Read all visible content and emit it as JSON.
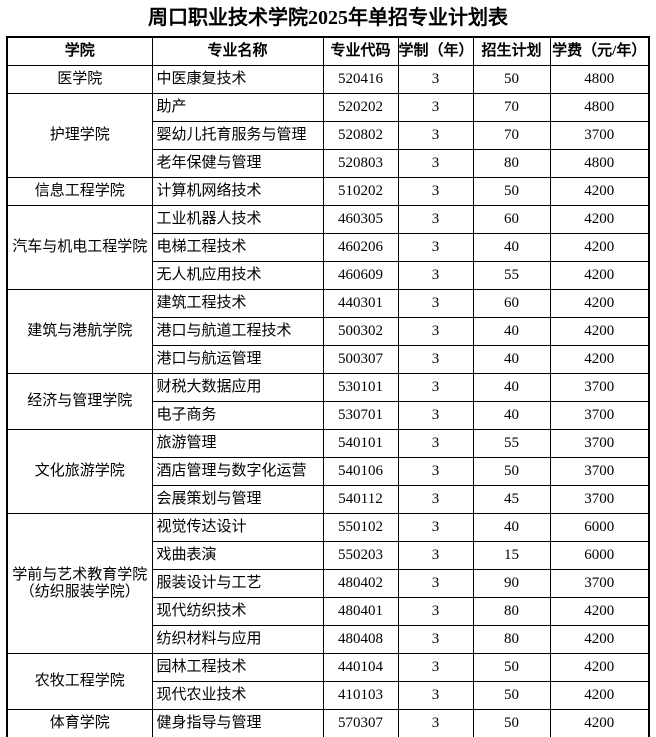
{
  "title": "周口职业技术学院2025年单招专业计划表",
  "table": {
    "headers": [
      "学院",
      "专业名称",
      "专业代码",
      "学制（年）",
      "招生计划",
      "学费（元/年）"
    ],
    "groups": [
      {
        "college": "医学院",
        "rows": [
          [
            "中医康复技术",
            "520416",
            "3",
            "50",
            "4800"
          ]
        ]
      },
      {
        "college": "护理学院",
        "rows": [
          [
            "助产",
            "520202",
            "3",
            "70",
            "4800"
          ],
          [
            "婴幼儿托育服务与管理",
            "520802",
            "3",
            "70",
            "3700"
          ],
          [
            "老年保健与管理",
            "520803",
            "3",
            "80",
            "4800"
          ]
        ]
      },
      {
        "college": "信息工程学院",
        "rows": [
          [
            "计算机网络技术",
            "510202",
            "3",
            "50",
            "4200"
          ]
        ]
      },
      {
        "college": "汽车与机电工程学院",
        "rows": [
          [
            "工业机器人技术",
            "460305",
            "3",
            "60",
            "4200"
          ],
          [
            "电梯工程技术",
            "460206",
            "3",
            "40",
            "4200"
          ],
          [
            "无人机应用技术",
            "460609",
            "3",
            "55",
            "4200"
          ]
        ]
      },
      {
        "college": "建筑与港航学院",
        "rows": [
          [
            "建筑工程技术",
            "440301",
            "3",
            "60",
            "4200"
          ],
          [
            "港口与航道工程技术",
            "500302",
            "3",
            "40",
            "4200"
          ],
          [
            "港口与航运管理",
            "500307",
            "3",
            "40",
            "4200"
          ]
        ]
      },
      {
        "college": "经济与管理学院",
        "rows": [
          [
            "财税大数据应用",
            "530101",
            "3",
            "40",
            "3700"
          ],
          [
            "电子商务",
            "530701",
            "3",
            "40",
            "3700"
          ]
        ]
      },
      {
        "college": "文化旅游学院",
        "rows": [
          [
            "旅游管理",
            "540101",
            "3",
            "55",
            "3700"
          ],
          [
            "酒店管理与数字化运营",
            "540106",
            "3",
            "50",
            "3700"
          ],
          [
            "会展策划与管理",
            "540112",
            "3",
            "45",
            "3700"
          ]
        ]
      },
      {
        "college": "学前与艺术教育学院（纺织服装学院）",
        "rows": [
          [
            "视觉传达设计",
            "550102",
            "3",
            "40",
            "6000"
          ],
          [
            "戏曲表演",
            "550203",
            "3",
            "15",
            "6000"
          ],
          [
            "服装设计与工艺",
            "480402",
            "3",
            "90",
            "3700"
          ],
          [
            "现代纺织技术",
            "480401",
            "3",
            "80",
            "4200"
          ],
          [
            "纺织材料与应用",
            "480408",
            "3",
            "80",
            "4200"
          ]
        ]
      },
      {
        "college": "农牧工程学院",
        "rows": [
          [
            "园林工程技术",
            "440104",
            "3",
            "50",
            "4200"
          ],
          [
            "现代农业技术",
            "410103",
            "3",
            "50",
            "4200"
          ]
        ]
      },
      {
        "college": "体育学院",
        "rows": [
          [
            "健身指导与管理",
            "570307",
            "3",
            "50",
            "4200"
          ]
        ]
      }
    ]
  }
}
